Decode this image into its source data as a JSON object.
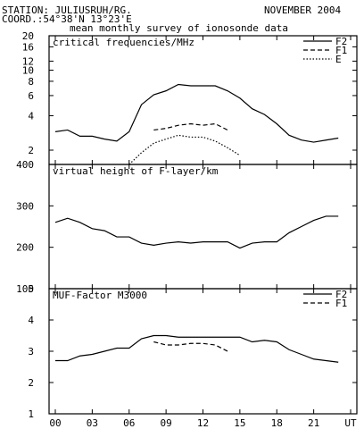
{
  "header": {
    "station": "STATION: JULIUSRUH/RG.",
    "date": "NOVEMBER 2004",
    "coord": "COORD.:54°38'N 13°23'E",
    "subtitle": "mean monthly survey of ionosonde data"
  },
  "chart_data": [
    {
      "type": "line",
      "title": "critical frequencies/MHz",
      "y_scale": "log",
      "ylim": [
        1.5,
        20
      ],
      "yticks": [
        2,
        4,
        6,
        8,
        10,
        12,
        16,
        20
      ],
      "x": [
        0,
        1,
        2,
        3,
        4,
        5,
        6,
        7,
        8,
        9,
        10,
        11,
        12,
        13,
        14,
        15,
        16,
        17,
        18,
        19,
        20,
        21,
        22,
        23
      ],
      "series": [
        {
          "name": "F2",
          "style": "solid",
          "values": [
            2.9,
            3.0,
            2.65,
            2.65,
            2.5,
            2.4,
            2.9,
            5.0,
            6.1,
            6.6,
            7.5,
            7.3,
            7.3,
            7.3,
            6.6,
            5.7,
            4.6,
            4.1,
            3.4,
            2.7,
            2.45,
            2.35,
            2.45,
            2.55
          ]
        },
        {
          "name": "F1",
          "style": "dashed",
          "values": [
            null,
            null,
            null,
            null,
            null,
            null,
            null,
            null,
            3.0,
            3.1,
            3.3,
            3.4,
            3.3,
            3.4,
            3.0,
            null,
            null,
            null,
            null,
            null,
            null,
            null,
            null,
            null
          ]
        },
        {
          "name": "E",
          "style": "dotted",
          "values": [
            null,
            null,
            null,
            null,
            null,
            null,
            1.5,
            1.9,
            2.3,
            2.5,
            2.7,
            2.6,
            2.6,
            2.4,
            2.1,
            1.8,
            null,
            null,
            null,
            null,
            null,
            null,
            null,
            null
          ]
        }
      ]
    },
    {
      "type": "line",
      "title": "virtual height of F-layer/km",
      "ylim": [
        100,
        400
      ],
      "yticks": [
        100,
        200,
        300,
        400
      ],
      "x": [
        0,
        1,
        2,
        3,
        4,
        5,
        6,
        7,
        8,
        9,
        10,
        11,
        12,
        13,
        14,
        15,
        16,
        17,
        18,
        19,
        20,
        21,
        22,
        23
      ],
      "series": [
        {
          "name": "",
          "style": "solid",
          "values": [
            260,
            270,
            260,
            245,
            240,
            225,
            225,
            210,
            205,
            210,
            213,
            210,
            213,
            213,
            213,
            198,
            210,
            213,
            213,
            235,
            250,
            265,
            275,
            275
          ]
        }
      ]
    },
    {
      "type": "line",
      "title": "MUF-Factor M3000",
      "ylim": [
        1,
        5
      ],
      "yticks": [
        1,
        2,
        3,
        4,
        5
      ],
      "x": [
        0,
        1,
        2,
        3,
        4,
        5,
        6,
        7,
        8,
        9,
        10,
        11,
        12,
        13,
        14,
        15,
        16,
        17,
        18,
        19,
        20,
        21,
        22,
        23
      ],
      "series": [
        {
          "name": "F2",
          "style": "solid",
          "values": [
            2.7,
            2.7,
            2.85,
            2.9,
            3.0,
            3.1,
            3.1,
            3.4,
            3.5,
            3.5,
            3.45,
            3.45,
            3.45,
            3.45,
            3.45,
            3.45,
            3.3,
            3.35,
            3.3,
            3.05,
            2.9,
            2.75,
            2.7,
            2.65
          ]
        },
        {
          "name": "F1",
          "style": "dashed",
          "values": [
            null,
            null,
            null,
            null,
            null,
            null,
            null,
            null,
            3.3,
            3.2,
            3.2,
            3.25,
            3.25,
            3.2,
            3.0,
            null,
            null,
            null,
            null,
            null,
            null,
            null,
            null,
            null
          ]
        }
      ]
    }
  ],
  "xaxis": {
    "tick_labels": [
      "00",
      "03",
      "06",
      "09",
      "12",
      "15",
      "18",
      "21",
      "UT"
    ],
    "tick_positions": [
      0,
      3,
      6,
      9,
      12,
      15,
      18,
      21,
      24
    ]
  }
}
